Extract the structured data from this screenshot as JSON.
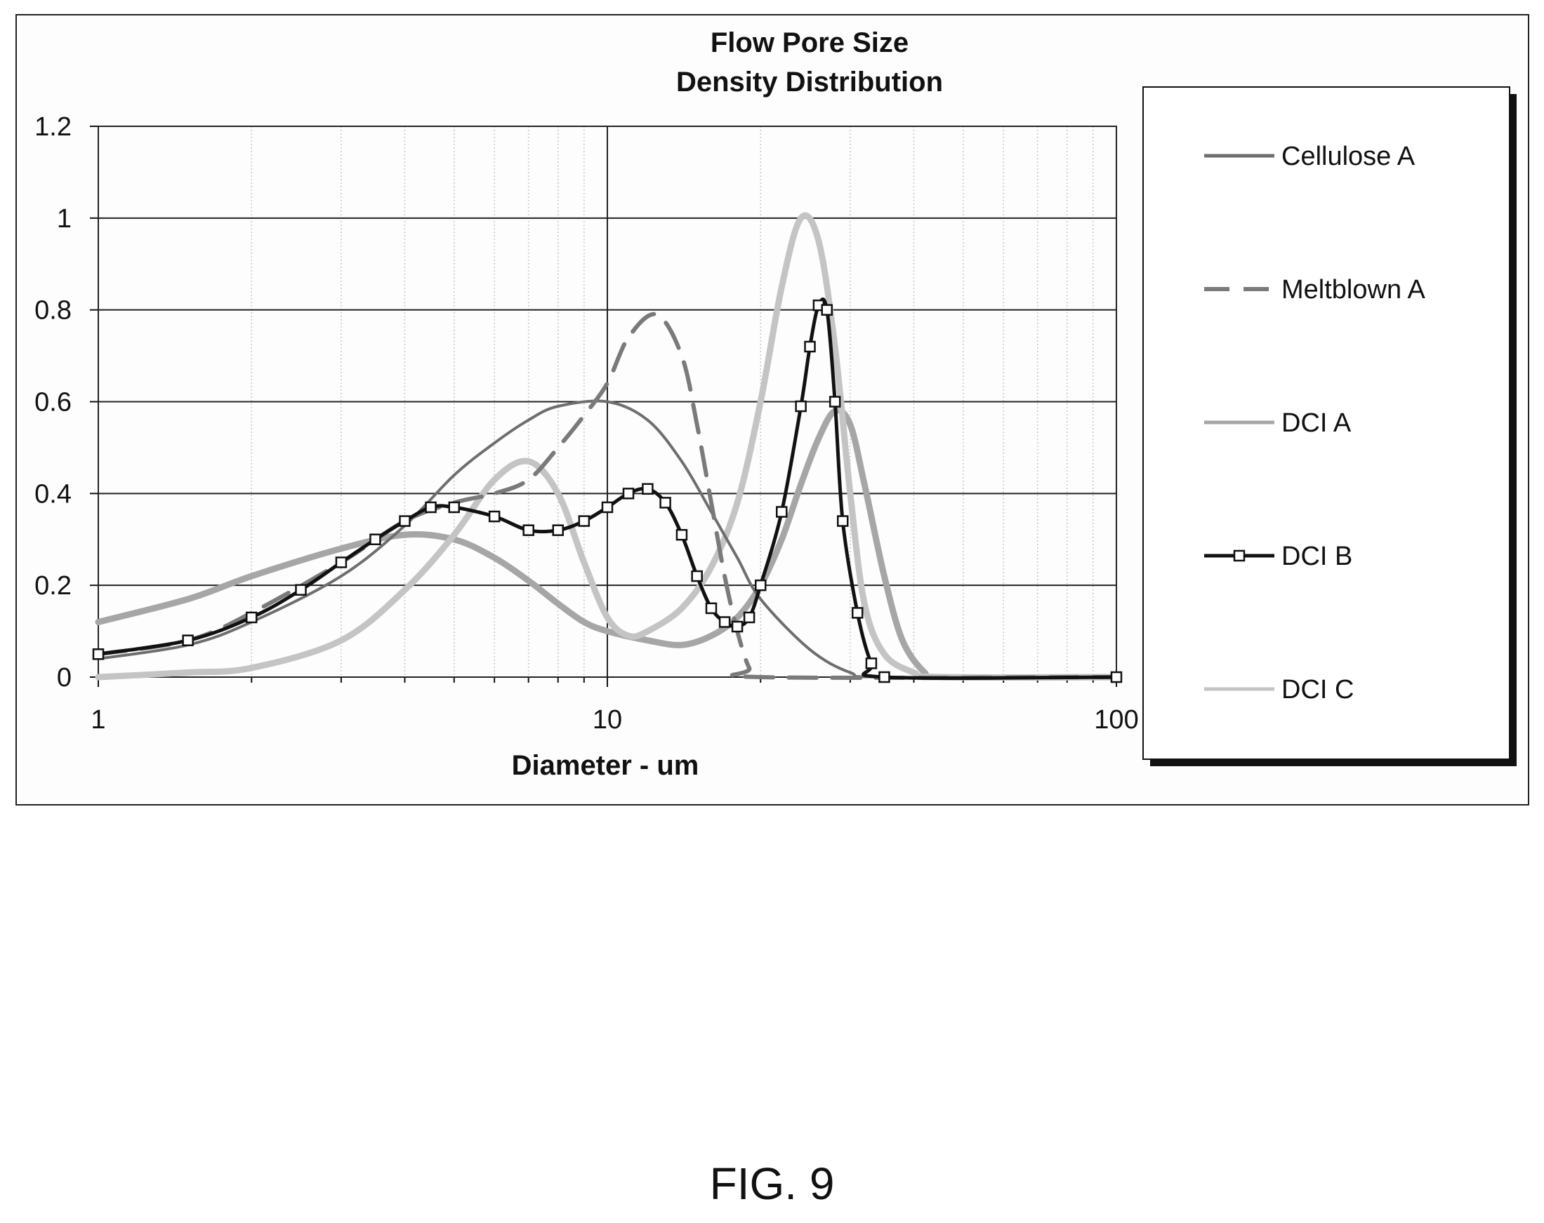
{
  "chart_data": {
    "type": "line",
    "title": "Flow Pore Size",
    "subtitle": "Density Distribution",
    "xlabel": "Diameter - um",
    "ylabel": "",
    "xscale": "log",
    "xlim": [
      1,
      100
    ],
    "ylim": [
      0,
      1.2
    ],
    "x_ticks": [
      "1",
      "10",
      "100"
    ],
    "y_ticks": [
      "0",
      "0.2",
      "0.4",
      "0.6",
      "0.8",
      "1",
      "1.2"
    ],
    "grid": true,
    "legend_position": "right",
    "series": [
      {
        "name": "Cellulose A",
        "color": "#6e6e6e",
        "style": "solid",
        "points": [
          [
            1,
            0.04
          ],
          [
            1.5,
            0.07
          ],
          [
            2,
            0.12
          ],
          [
            3,
            0.22
          ],
          [
            4,
            0.33
          ],
          [
            5,
            0.44
          ],
          [
            6,
            0.51
          ],
          [
            7,
            0.56
          ],
          [
            8,
            0.59
          ],
          [
            10,
            0.6
          ],
          [
            12,
            0.56
          ],
          [
            14,
            0.47
          ],
          [
            16,
            0.36
          ],
          [
            18,
            0.26
          ],
          [
            20,
            0.17
          ],
          [
            25,
            0.06
          ],
          [
            30,
            0.01
          ],
          [
            35,
            0.0
          ],
          [
            100,
            0.0
          ]
        ]
      },
      {
        "name": "Meltblown A",
        "color": "#7a7a7a",
        "style": "dashed",
        "points": [
          [
            1,
            0.05
          ],
          [
            1.5,
            0.08
          ],
          [
            2,
            0.14
          ],
          [
            3,
            0.25
          ],
          [
            4,
            0.34
          ],
          [
            5,
            0.38
          ],
          [
            6,
            0.4
          ],
          [
            7,
            0.43
          ],
          [
            8,
            0.5
          ],
          [
            9,
            0.57
          ],
          [
            10,
            0.64
          ],
          [
            11,
            0.74
          ],
          [
            12.5,
            0.79
          ],
          [
            14,
            0.7
          ],
          [
            15,
            0.55
          ],
          [
            16,
            0.38
          ],
          [
            17,
            0.22
          ],
          [
            18,
            0.1
          ],
          [
            19,
            0.02
          ],
          [
            20,
            0.0
          ],
          [
            100,
            0.0
          ]
        ]
      },
      {
        "name": "DCI A",
        "color": "#a6a6a6",
        "style": "solid",
        "points": [
          [
            1,
            0.12
          ],
          [
            1.5,
            0.17
          ],
          [
            2,
            0.22
          ],
          [
            3,
            0.28
          ],
          [
            4,
            0.31
          ],
          [
            5,
            0.3
          ],
          [
            6,
            0.26
          ],
          [
            7,
            0.21
          ],
          [
            8,
            0.16
          ],
          [
            9,
            0.12
          ],
          [
            10,
            0.1
          ],
          [
            12,
            0.08
          ],
          [
            14,
            0.07
          ],
          [
            16,
            0.09
          ],
          [
            18,
            0.13
          ],
          [
            20,
            0.2
          ],
          [
            22,
            0.3
          ],
          [
            24,
            0.42
          ],
          [
            26,
            0.52
          ],
          [
            28,
            0.58
          ],
          [
            30,
            0.55
          ],
          [
            32,
            0.42
          ],
          [
            35,
            0.22
          ],
          [
            38,
            0.08
          ],
          [
            42,
            0.01
          ],
          [
            45,
            0.0
          ],
          [
            100,
            0.0
          ]
        ]
      },
      {
        "name": "DCI B",
        "color": "#111111",
        "style": "solid-square-markers",
        "points": [
          [
            1,
            0.05
          ],
          [
            1.5,
            0.08
          ],
          [
            2,
            0.13
          ],
          [
            2.5,
            0.19
          ],
          [
            3,
            0.25
          ],
          [
            3.5,
            0.3
          ],
          [
            4,
            0.34
          ],
          [
            4.5,
            0.37
          ],
          [
            5,
            0.37
          ],
          [
            6,
            0.35
          ],
          [
            7,
            0.32
          ],
          [
            8,
            0.32
          ],
          [
            9,
            0.34
          ],
          [
            10,
            0.37
          ],
          [
            11,
            0.4
          ],
          [
            12,
            0.41
          ],
          [
            13,
            0.38
          ],
          [
            14,
            0.31
          ],
          [
            15,
            0.22
          ],
          [
            16,
            0.15
          ],
          [
            17,
            0.12
          ],
          [
            18,
            0.11
          ],
          [
            19,
            0.13
          ],
          [
            20,
            0.2
          ],
          [
            22,
            0.36
          ],
          [
            24,
            0.59
          ],
          [
            25,
            0.72
          ],
          [
            26,
            0.81
          ],
          [
            27,
            0.8
          ],
          [
            28,
            0.6
          ],
          [
            29,
            0.34
          ],
          [
            31,
            0.14
          ],
          [
            33,
            0.03
          ],
          [
            35,
            0.0
          ],
          [
            100,
            0.0
          ]
        ]
      },
      {
        "name": "DCI C",
        "color": "#c4c4c4",
        "style": "solid",
        "points": [
          [
            1,
            0.0
          ],
          [
            1.5,
            0.01
          ],
          [
            2,
            0.02
          ],
          [
            3,
            0.08
          ],
          [
            4,
            0.19
          ],
          [
            5,
            0.31
          ],
          [
            6,
            0.43
          ],
          [
            7,
            0.47
          ],
          [
            8,
            0.4
          ],
          [
            9,
            0.25
          ],
          [
            10,
            0.13
          ],
          [
            11,
            0.09
          ],
          [
            12,
            0.1
          ],
          [
            14,
            0.15
          ],
          [
            16,
            0.24
          ],
          [
            18,
            0.38
          ],
          [
            20,
            0.6
          ],
          [
            22,
            0.85
          ],
          [
            24,
            1.0
          ],
          [
            26,
            0.95
          ],
          [
            28,
            0.72
          ],
          [
            30,
            0.4
          ],
          [
            32,
            0.16
          ],
          [
            35,
            0.05
          ],
          [
            40,
            0.01
          ],
          [
            45,
            0.0
          ],
          [
            100,
            0.0
          ]
        ]
      }
    ]
  },
  "caption": "FIG. 9"
}
